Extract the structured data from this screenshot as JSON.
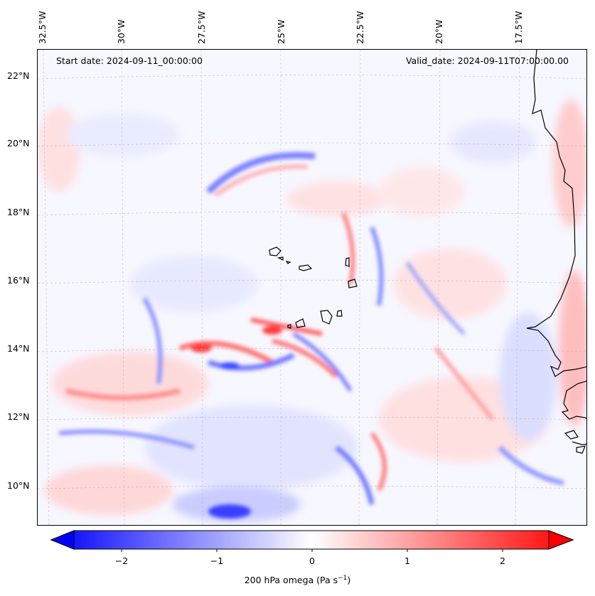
{
  "map": {
    "start_date": "Start date: 2024-09-11_00:00:00",
    "valid_date": "Valid_date: 2024-09-11T07:00:00.00",
    "lon_labels": [
      "32.5°W",
      "30°W",
      "27.5°W",
      "25°W",
      "22.5°W",
      "20°W",
      "17.5°W"
    ],
    "lat_labels": [
      "22°N",
      "20°N",
      "18°N",
      "16°N",
      "14°N",
      "12°N",
      "10°N"
    ],
    "colorbar": {
      "ticks": [
        "−2",
        "−1",
        "0",
        "1",
        "2"
      ],
      "label": "200 hPa omega (Pa s",
      "label_sup": "−1",
      "label_end": ")",
      "min_color": "#0000ff",
      "mid_color": "#ffffff",
      "max_color": "#ff0000"
    },
    "colors": {
      "coastline": "#000000",
      "grid": "#c8a8a8",
      "background": "#f7f7ff"
    }
  }
}
